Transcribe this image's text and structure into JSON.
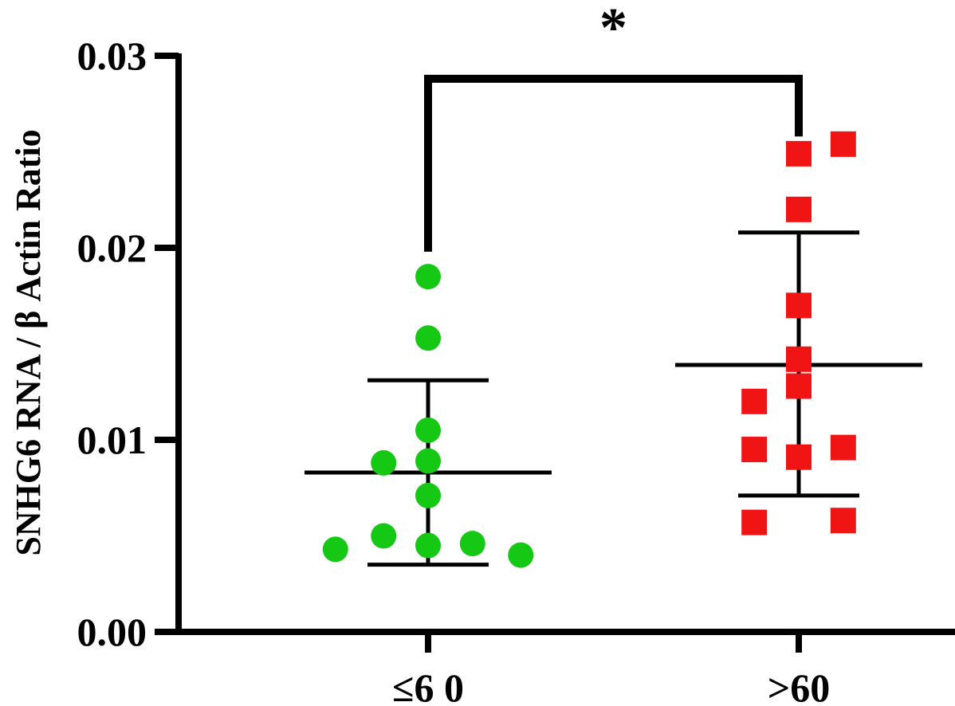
{
  "chart_data": {
    "type": "scatter",
    "ylabel": "SNHG6 RNA / β Actin Ratio",
    "ylim": [
      0,
      0.03
    ],
    "yticks": [
      "0.00",
      "0.01",
      "0.02",
      "0.03"
    ],
    "yticks_values": [
      0,
      0.01,
      0.02,
      0.03
    ],
    "categories": [
      "≤6 0",
      ">60"
    ],
    "series": [
      {
        "category": "≤6 0",
        "marker": "circle",
        "color": "#14c814",
        "points": [
          {
            "x": 0.0,
            "y": 0.0185
          },
          {
            "x": 0.0,
            "y": 0.0153
          },
          {
            "x": 0.0,
            "y": 0.0105
          },
          {
            "x": -0.12,
            "y": 0.0088
          },
          {
            "x": 0.0,
            "y": 0.0089
          },
          {
            "x": 0.0,
            "y": 0.0071
          },
          {
            "x": -0.12,
            "y": 0.005
          },
          {
            "x": 0.0,
            "y": 0.0045
          },
          {
            "x": 0.12,
            "y": 0.0046
          },
          {
            "x": -0.25,
            "y": 0.0043
          },
          {
            "x": 0.25,
            "y": 0.004
          }
        ],
        "mean": 0.0083,
        "sd_low": 0.0035,
        "sd_high": 0.0131
      },
      {
        "category": ">60",
        "marker": "square",
        "color": "#f01414",
        "points": [
          {
            "x": 0.0,
            "y": 0.0249
          },
          {
            "x": 0.12,
            "y": 0.0254
          },
          {
            "x": 0.0,
            "y": 0.022
          },
          {
            "x": 0.0,
            "y": 0.017
          },
          {
            "x": 0.0,
            "y": 0.0142
          },
          {
            "x": 0.0,
            "y": 0.0128
          },
          {
            "x": -0.12,
            "y": 0.012
          },
          {
            "x": -0.12,
            "y": 0.0095
          },
          {
            "x": 0.0,
            "y": 0.0091
          },
          {
            "x": 0.12,
            "y": 0.0096
          },
          {
            "x": -0.12,
            "y": 0.0057
          },
          {
            "x": 0.12,
            "y": 0.0058
          }
        ],
        "mean": 0.0139,
        "sd_low": 0.0071,
        "sd_high": 0.0208
      }
    ],
    "significance": {
      "label": "*",
      "from_category": "≤6 0",
      "to_category": ">60",
      "bracket_y": 0.0288,
      "left_foot_y": 0.0198,
      "right_foot_y": 0.0258
    },
    "grid": false,
    "legend": "none"
  }
}
